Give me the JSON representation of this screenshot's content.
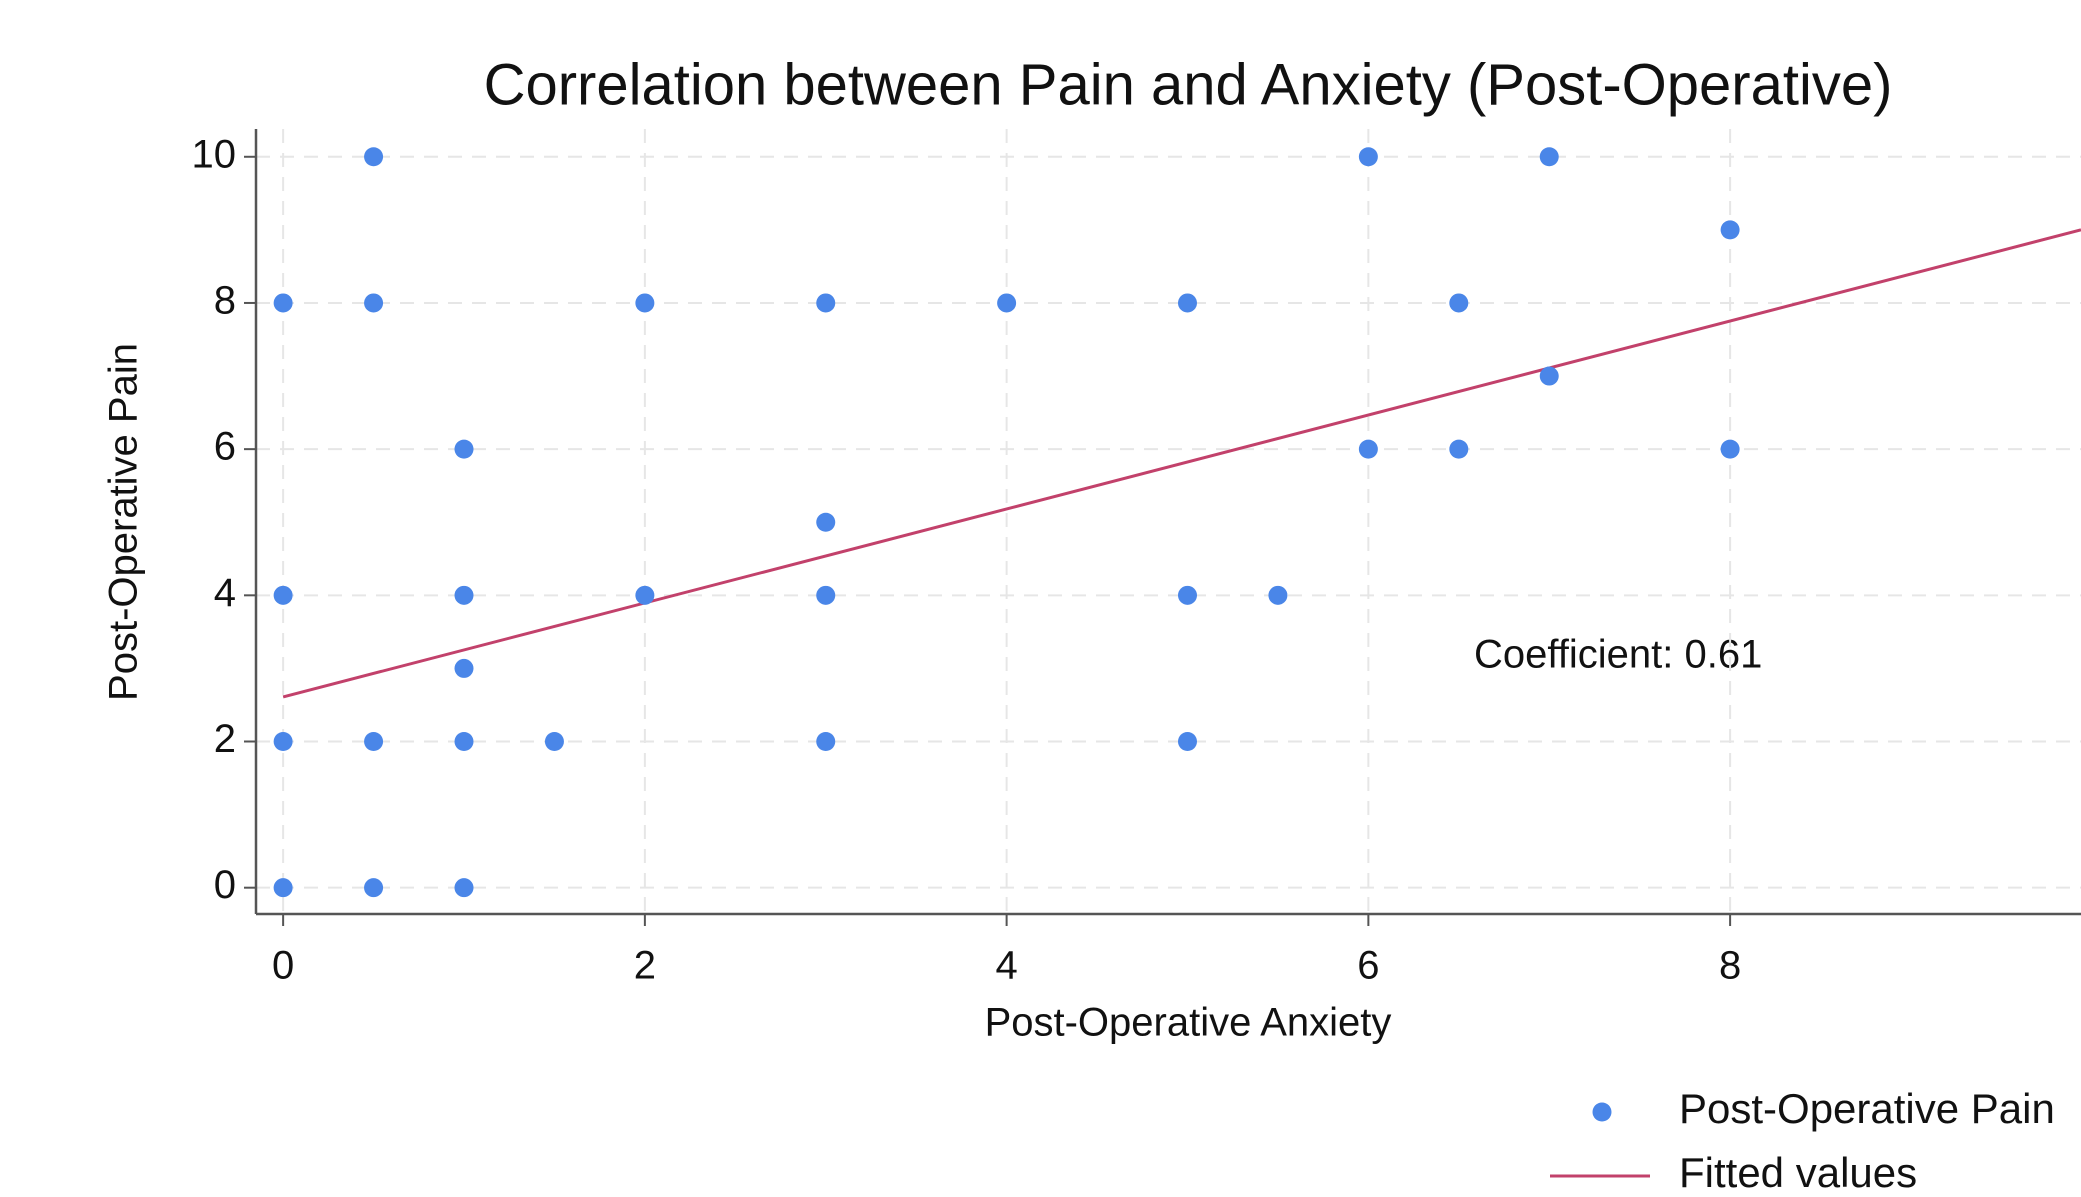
{
  "chart_data": {
    "type": "scatter",
    "title": "Correlation between Pain and Anxiety (Post-Operative)",
    "x_label": "Post-Operative Anxiety",
    "y_label": "Post-Operative Pain",
    "annotation": "Coefficient: 0.61",
    "xlim": [
      -0.15,
      9.94
    ],
    "ylim": [
      -0.36,
      10.38
    ],
    "xticks": [
      0,
      2,
      4,
      6,
      8
    ],
    "yticks": [
      0,
      2,
      4,
      6,
      8,
      10
    ],
    "grid": true,
    "legend": "bottom-right",
    "series": [
      {
        "name": "Post-Operative Pain",
        "type": "scatter",
        "color": "#4a86e8",
        "x": [
          0.5,
          6,
          7,
          8,
          0,
          0.5,
          2,
          3,
          4,
          5,
          6.5,
          7,
          1,
          6,
          6.5,
          8,
          3,
          0,
          1,
          2,
          3,
          5,
          5.5,
          1,
          0,
          0.5,
          1,
          1.5,
          3,
          5,
          0,
          0.5,
          1
        ],
        "values": [
          10,
          10,
          10,
          9,
          8,
          8,
          8,
          8,
          8,
          8,
          8,
          7,
          6,
          6,
          6,
          6,
          5,
          4,
          4,
          4,
          4,
          4,
          4,
          3,
          2,
          2,
          2,
          2,
          2,
          2,
          0,
          0,
          0
        ]
      },
      {
        "name": "Fitted values",
        "type": "line",
        "color": "#c2416b",
        "x": [
          0,
          9.94
        ],
        "values": [
          2.61,
          9.0
        ]
      }
    ]
  }
}
